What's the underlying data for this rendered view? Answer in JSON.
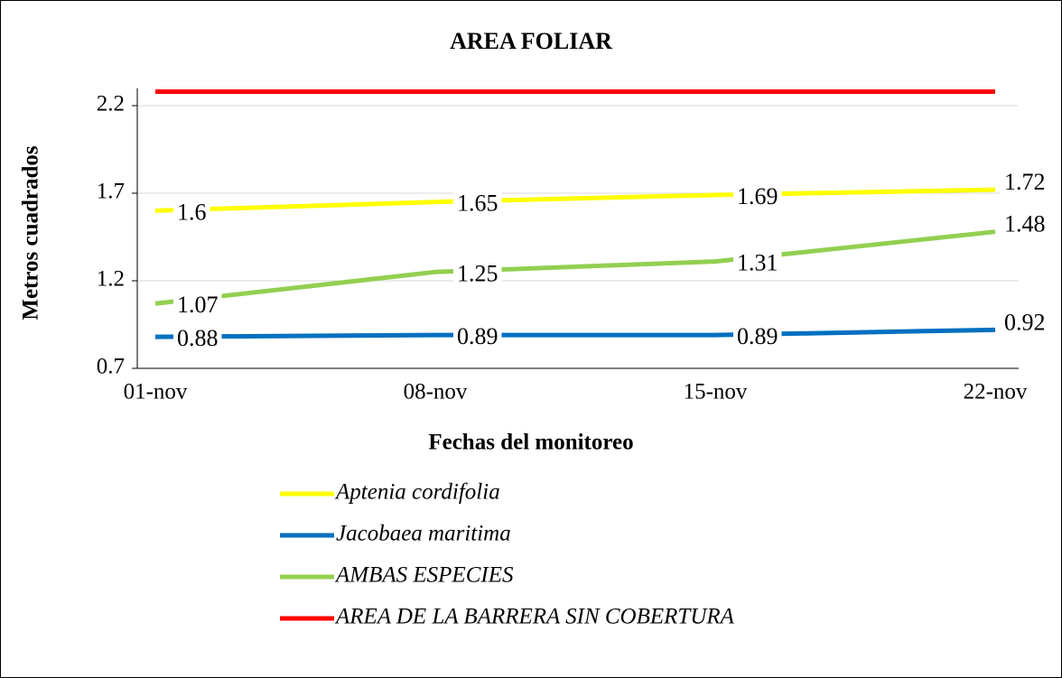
{
  "chart_data": {
    "type": "line",
    "title": "AREA FOLIAR",
    "x_label": "Fechas del monitoreo",
    "y_label": "Metros cuadrados",
    "categories": [
      "01-nov",
      "08-nov",
      "15-nov",
      "22-nov"
    ],
    "series": [
      {
        "name": "Aptenia cordifolia",
        "color": "#ffff00",
        "values": [
          1.6,
          1.65,
          1.69,
          1.72
        ],
        "data_labels": true
      },
      {
        "name": "Jacobaea maritima",
        "color": "#0070c0",
        "values": [
          0.88,
          0.89,
          0.89,
          0.92
        ],
        "data_labels": true
      },
      {
        "name": "AMBAS ESPECIES",
        "color": "#92d050",
        "values": [
          1.07,
          1.25,
          1.31,
          1.48
        ],
        "data_labels": true
      },
      {
        "name": "AREA DE LA BARRERA SIN COBERTURA",
        "color": "#ff0000",
        "values": [
          2.28,
          2.28,
          2.28,
          2.28
        ],
        "data_labels": false
      }
    ],
    "ylim": [
      0.7,
      2.3
    ],
    "yticks": [
      0.7,
      1.2,
      1.7,
      2.2
    ],
    "grid": true,
    "legend": "bottom"
  }
}
